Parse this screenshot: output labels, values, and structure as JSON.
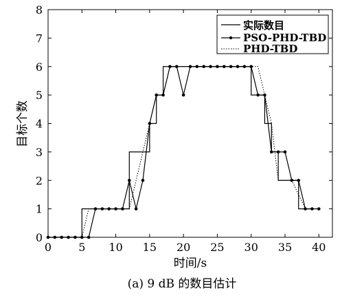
{
  "chart_data": {
    "type": "line",
    "xlabel": "时间/s",
    "ylabel": "目标个数",
    "xlim": [
      0,
      42
    ],
    "ylim": [
      0,
      8
    ],
    "xticks": [
      0,
      5,
      10,
      15,
      20,
      25,
      30,
      35,
      40
    ],
    "yticks": [
      0,
      1,
      2,
      3,
      4,
      5,
      6,
      7,
      8
    ],
    "grid": false,
    "legend_position": "top-right",
    "series": [
      {
        "name": "实际数目",
        "style": "solid-step",
        "color": "#000000",
        "points": [
          [
            0,
            0
          ],
          [
            5,
            0
          ],
          [
            5,
            1
          ],
          [
            12,
            1
          ],
          [
            12,
            3
          ],
          [
            15,
            3
          ],
          [
            15,
            4
          ],
          [
            16,
            4
          ],
          [
            16,
            5
          ],
          [
            17,
            5
          ],
          [
            17,
            6
          ],
          [
            30,
            6
          ],
          [
            30,
            5
          ],
          [
            32,
            5
          ],
          [
            32,
            4
          ],
          [
            33,
            4
          ],
          [
            33,
            3
          ],
          [
            34,
            3
          ],
          [
            34,
            2
          ],
          [
            37,
            2
          ],
          [
            37,
            1
          ],
          [
            39,
            1
          ]
        ]
      },
      {
        "name": "PSO-PHD-TBD",
        "style": "solid-marker",
        "color": "#000000",
        "points": [
          [
            0,
            0
          ],
          [
            1,
            0
          ],
          [
            2,
            0
          ],
          [
            3,
            0
          ],
          [
            4,
            0
          ],
          [
            5,
            0
          ],
          [
            6,
            0
          ],
          [
            7,
            1
          ],
          [
            8,
            1
          ],
          [
            9,
            1
          ],
          [
            10,
            1
          ],
          [
            11,
            1
          ],
          [
            12,
            2
          ],
          [
            13,
            1
          ],
          [
            14,
            2
          ],
          [
            15,
            4
          ],
          [
            16,
            5
          ],
          [
            17,
            5
          ],
          [
            18,
            6
          ],
          [
            19,
            6
          ],
          [
            20,
            5
          ],
          [
            21,
            6
          ],
          [
            22,
            6
          ],
          [
            23,
            6
          ],
          [
            24,
            6
          ],
          [
            25,
            6
          ],
          [
            26,
            6
          ],
          [
            27,
            6
          ],
          [
            28,
            6
          ],
          [
            29,
            6
          ],
          [
            30,
            6
          ],
          [
            31,
            5
          ],
          [
            32,
            5
          ],
          [
            33,
            3
          ],
          [
            34,
            3
          ],
          [
            35,
            3
          ],
          [
            36,
            2
          ],
          [
            37,
            2
          ],
          [
            38,
            1
          ],
          [
            39,
            1
          ],
          [
            40,
            1
          ]
        ]
      },
      {
        "name": "PHD-TBD",
        "style": "dotted",
        "color": "#000000",
        "points": [
          [
            0,
            0
          ],
          [
            5,
            0
          ],
          [
            6,
            1
          ],
          [
            12,
            1
          ],
          [
            13,
            2
          ],
          [
            16,
            5
          ],
          [
            17,
            5
          ],
          [
            18,
            6
          ],
          [
            19,
            6
          ],
          [
            20,
            6
          ],
          [
            31,
            6
          ],
          [
            33,
            4
          ],
          [
            34,
            2
          ],
          [
            36,
            2
          ],
          [
            38,
            1
          ],
          [
            39,
            1
          ]
        ]
      }
    ]
  },
  "caption": "(a) 9 dB 的数目估计"
}
